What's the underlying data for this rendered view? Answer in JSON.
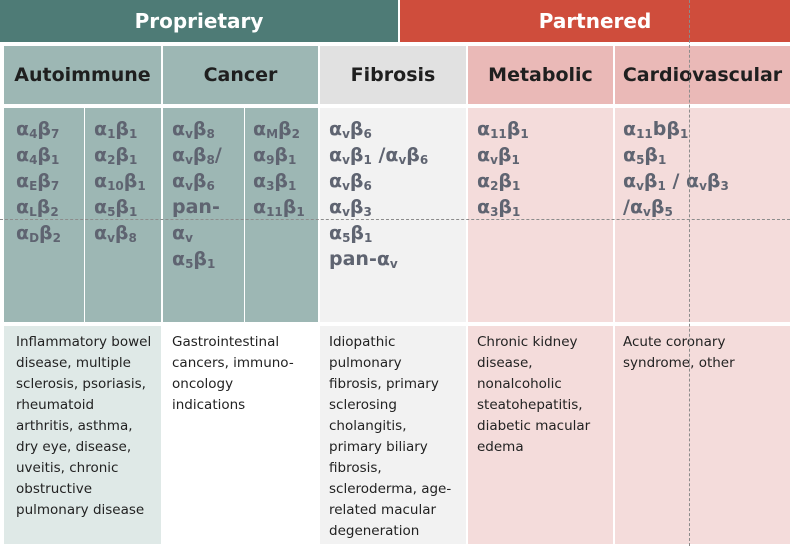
{
  "header": {
    "proprietary_label": "Proprietary",
    "partnered_label": "Partnered",
    "colors": {
      "proprietary": "#4e7b76",
      "partnered": "#cf4d3c"
    }
  },
  "columns": [
    {
      "category": "Autoimmune",
      "integrins_a": [
        {
          "a": "4",
          "b": "7"
        },
        {
          "a": "4",
          "b": "1"
        },
        {
          "a": "E",
          "b": "7"
        },
        {
          "a": "L",
          "b": "2"
        },
        {
          "a": "D",
          "b": "2"
        }
      ],
      "integrins_b": [
        {
          "a": "1",
          "b": "1"
        },
        {
          "a": "2",
          "b": "1"
        },
        {
          "a": "10",
          "b": "1"
        },
        {
          "a": "5",
          "b": "1"
        },
        {
          "a": "v",
          "b": "8"
        }
      ],
      "indications": "Inflammatory bowel disease, multiple sclerosis, psoriasis, rheumatoid arthritis, asthma, dry eye, disease, uveitis, chronic obstructive pulmonary disease"
    },
    {
      "category": "Cancer",
      "integrins_a": [
        {
          "a": "v",
          "b": "8"
        },
        {
          "a": "v",
          "b": "8",
          "tail": "/"
        },
        {
          "a": "v",
          "b": "6"
        },
        {
          "text": "pan-"
        },
        {
          "a": "v",
          "b": "",
          "prefix": ""
        },
        {
          "a": "5",
          "b": "1"
        }
      ],
      "integrins_b": [
        {
          "a": "M",
          "b": "2"
        },
        {
          "a": "9",
          "b": "1"
        },
        {
          "a": "3",
          "b": "1"
        },
        {
          "a": "11",
          "b": "1"
        }
      ],
      "indications": "Gastrointestinal cancers, immuno-oncology indications"
    },
    {
      "category": "Fibrosis",
      "integrins_a": [
        {
          "a": "v",
          "b": "6"
        },
        {
          "a": "v",
          "b": "1",
          "tail": " /α",
          "tail_sub": "v",
          "tail2": "β",
          "tail2_sub": "6"
        },
        {
          "a": "v",
          "b": "6"
        },
        {
          "a": "v",
          "b": "3"
        },
        {
          "a": "5",
          "b": "1"
        },
        {
          "text": "pan-α",
          "text_sub": "v"
        }
      ],
      "indications": "Idiopathic pulmonary fibrosis, primary sclerosing cholangitis, primary biliary fibrosis, scleroderma, age-related macular degeneration"
    },
    {
      "category": "Metabolic",
      "integrins_a": [
        {
          "a": "11",
          "b": "1"
        },
        {
          "a": "v",
          "b": "1"
        },
        {
          "a": "2",
          "b": "1"
        },
        {
          "a": "3",
          "b": "1"
        }
      ],
      "indications": "Chronic kidney disease, nonalcoholic steatohepatitis, diabetic macular edema"
    },
    {
      "category": "Cardiovascular",
      "integrins_a": [
        {
          "a": "11",
          "b": "1",
          "mid": "b"
        },
        {
          "a": "5",
          "b": "1"
        },
        {
          "a": "v",
          "b": "1",
          "tail": " / α",
          "tail_sub": "v",
          "tail2": "β",
          "tail2_sub": "3"
        },
        {
          "text": "/α",
          "text_sub": "v",
          "tail2": "β",
          "tail2_sub": "5"
        }
      ],
      "indications": "Acute coronary syndrome, other"
    }
  ]
}
